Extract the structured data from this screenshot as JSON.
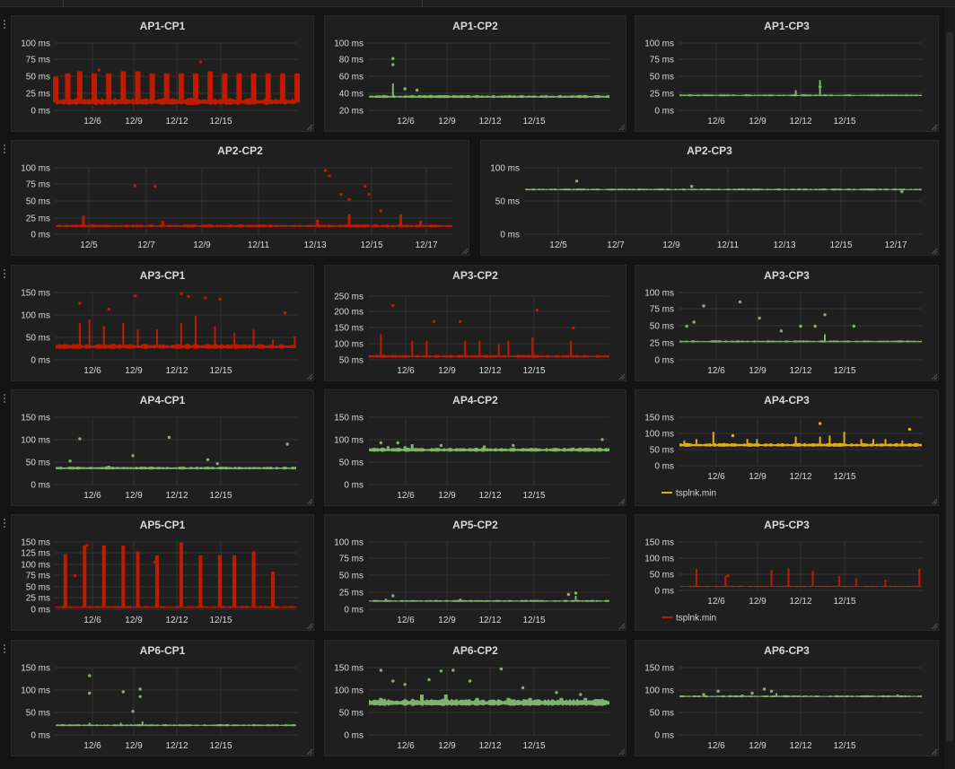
{
  "colors": {
    "red": "#bf1b00",
    "green": "#7eb26d",
    "yellow": "#e5ac0e",
    "panel_bg": "#1f1f1f",
    "page_bg": "#141414",
    "grid": "#333333",
    "text": "#d8d9da"
  },
  "dashboard": {
    "panels": [
      {
        "title": "AP1-CP1",
        "color": "red",
        "yticks": [
          "100 ms",
          "75 ms",
          "50 ms",
          "25 ms",
          "0 ms"
        ],
        "xticks": [
          "12/6",
          "12/9",
          "12/12",
          "12/15"
        ],
        "legend": ""
      },
      {
        "title": "AP1-CP2",
        "color": "green",
        "yticks": [
          "100 ms",
          "80 ms",
          "60 ms",
          "40 ms",
          "20 ms"
        ],
        "xticks": [
          "12/6",
          "12/9",
          "12/12",
          "12/15"
        ],
        "legend": ""
      },
      {
        "title": "AP1-CP3",
        "color": "green",
        "yticks": [
          "100 ms",
          "75 ms",
          "50 ms",
          "25 ms",
          "0 ms"
        ],
        "xticks": [
          "12/6",
          "12/9",
          "12/12",
          "12/15"
        ],
        "legend": ""
      },
      {
        "title": "AP2-CP2",
        "color": "red",
        "yticks": [
          "100 ms",
          "75 ms",
          "50 ms",
          "25 ms",
          "0 ms"
        ],
        "xticks": [
          "12/5",
          "12/7",
          "12/9",
          "12/11",
          "12/13",
          "12/15",
          "12/17"
        ],
        "legend": ""
      },
      {
        "title": "AP2-CP3",
        "color": "green",
        "yticks": [
          "100 ms",
          "50 ms",
          "0 ms"
        ],
        "xticks": [
          "12/5",
          "12/7",
          "12/9",
          "12/11",
          "12/13",
          "12/15",
          "12/17"
        ],
        "legend": ""
      },
      {
        "title": "AP3-CP1",
        "color": "red",
        "yticks": [
          "150 ms",
          "100 ms",
          "50 ms",
          "0 ms"
        ],
        "xticks": [
          "12/6",
          "12/9",
          "12/12",
          "12/15"
        ],
        "legend": ""
      },
      {
        "title": "AP3-CP2",
        "color": "red",
        "yticks": [
          "250 ms",
          "200 ms",
          "150 ms",
          "100 ms",
          "50 ms"
        ],
        "xticks": [
          "12/6",
          "12/9",
          "12/12",
          "12/15"
        ],
        "legend": ""
      },
      {
        "title": "AP3-CP3",
        "color": "green",
        "yticks": [
          "100 ms",
          "75 ms",
          "50 ms",
          "25 ms",
          "0 ms"
        ],
        "xticks": [
          "12/6",
          "12/9",
          "12/12",
          "12/15"
        ],
        "legend": ""
      },
      {
        "title": "AP4-CP1",
        "color": "green",
        "yticks": [
          "150 ms",
          "100 ms",
          "50 ms",
          "0 ms"
        ],
        "xticks": [
          "12/6",
          "12/9",
          "12/12",
          "12/15"
        ],
        "legend": ""
      },
      {
        "title": "AP4-CP2",
        "color": "green",
        "yticks": [
          "150 ms",
          "100 ms",
          "50 ms",
          "0 ms"
        ],
        "xticks": [
          "12/6",
          "12/9",
          "12/12",
          "12/15"
        ],
        "legend": ""
      },
      {
        "title": "AP4-CP3",
        "color": "yellow",
        "yticks": [
          "150 ms",
          "100 ms",
          "50 ms",
          "0 ms"
        ],
        "xticks": [
          "12/6",
          "12/9",
          "12/12",
          "12/15"
        ],
        "legend": "tsplnk.min"
      },
      {
        "title": "AP5-CP1",
        "color": "red",
        "yticks": [
          "150 ms",
          "125 ms",
          "100 ms",
          "75 ms",
          "50 ms",
          "25 ms",
          "0 ms"
        ],
        "xticks": [
          "12/6",
          "12/9",
          "12/12",
          "12/15"
        ],
        "legend": ""
      },
      {
        "title": "AP5-CP2",
        "color": "green",
        "yticks": [
          "100 ms",
          "75 ms",
          "50 ms",
          "25 ms",
          "0 ms"
        ],
        "xticks": [
          "12/6",
          "12/9",
          "12/12",
          "12/15"
        ],
        "legend": ""
      },
      {
        "title": "AP5-CP3",
        "color": "red",
        "yticks": [
          "150 ms",
          "100 ms",
          "50 ms",
          "0 ms"
        ],
        "xticks": [
          "12/6",
          "12/9",
          "12/12",
          "12/15"
        ],
        "legend": "tsplnk.min"
      },
      {
        "title": "AP6-CP1",
        "color": "green",
        "yticks": [
          "150 ms",
          "100 ms",
          "50 ms",
          "0 ms"
        ],
        "xticks": [
          "12/6",
          "12/9",
          "12/12",
          "12/15"
        ],
        "legend": ""
      },
      {
        "title": "AP6-CP2",
        "color": "green",
        "yticks": [
          "150 ms",
          "100 ms",
          "50 ms",
          "0 ms"
        ],
        "xticks": [
          "12/6",
          "12/9",
          "12/12",
          "12/15"
        ],
        "legend": ""
      },
      {
        "title": "AP6-CP3",
        "color": "green",
        "yticks": [
          "150 ms",
          "100 ms",
          "50 ms",
          "0 ms"
        ],
        "xticks": [
          "12/6",
          "12/9",
          "12/12",
          "12/15"
        ],
        "legend": ""
      }
    ]
  }
}
